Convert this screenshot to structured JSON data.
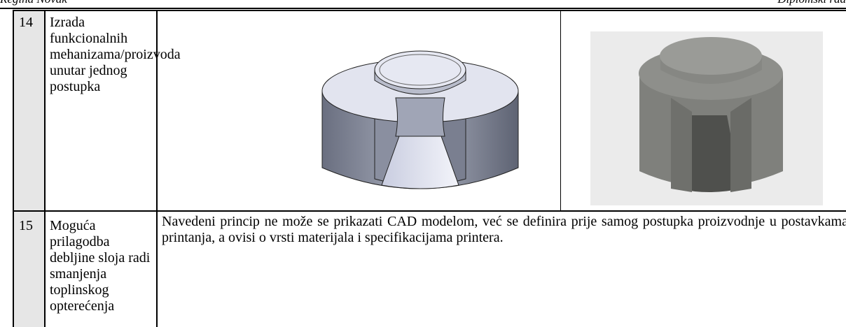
{
  "header": {
    "author": "Regina Novak",
    "document": "Diplomski rad"
  },
  "table": {
    "rows": [
      [
        "14",
        "Izrada funkcionalnih mehanizama/proizvoda unutar jednog postupka"
      ],
      [
        "15",
        "Moguća prilagodba debljine sloja radi smanjenja toplinskog opterećenja",
        "Navedeni princip ne može se prikazati CAD modelom, već se definira prije samog postupka proizvodnje u postavkama printanja, a ovisi o vrsti materijala i specifikacijama printera."
      ]
    ]
  }
}
